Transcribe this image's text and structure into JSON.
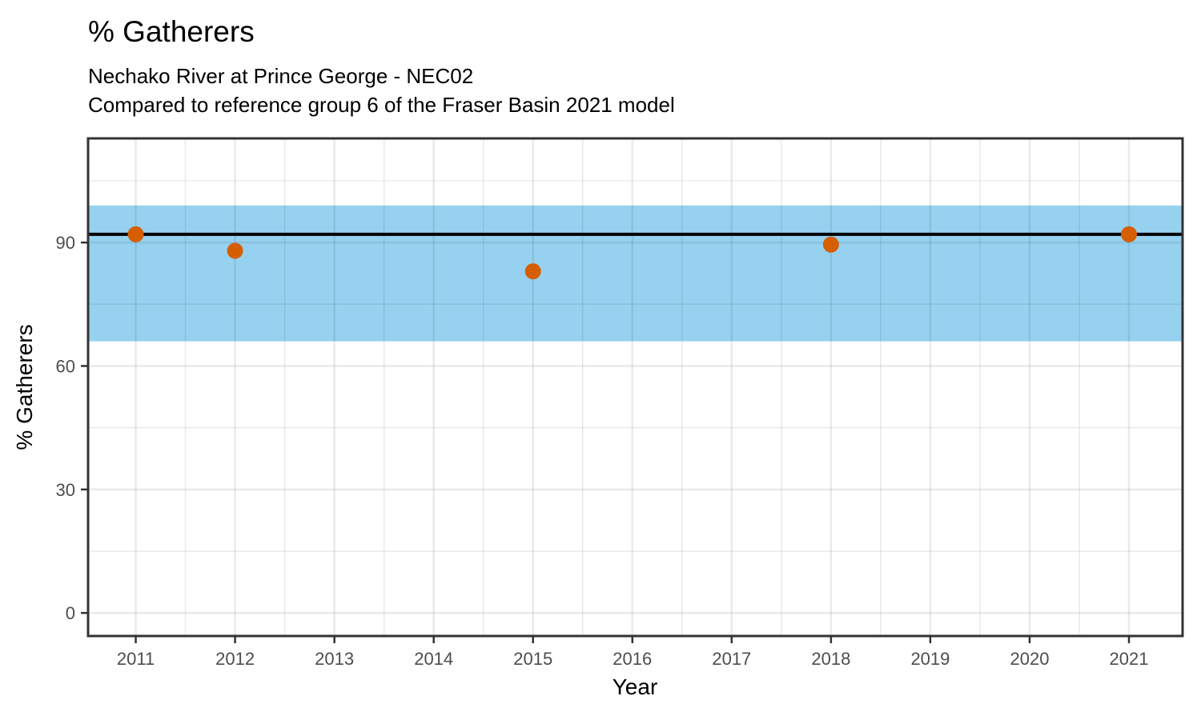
{
  "header": {
    "title": "% Gatherers",
    "subtitle_line1": "Nechako River at Prince George - NEC02",
    "subtitle_line2": "Compared to reference group 6 of the Fraser Basin 2021 model"
  },
  "chart_data": {
    "type": "scatter",
    "title": "% Gatherers",
    "subtitle": "Nechako River at Prince George - NEC02 / Compared to reference group 6 of the Fraser Basin 2021 model",
    "xlabel": "Year",
    "ylabel": "% Gatherers",
    "x_domain": [
      2010.52,
      2021.54
    ],
    "y_domain": [
      -5.6,
      115.3
    ],
    "x_ticks": [
      2011,
      2012,
      2013,
      2014,
      2015,
      2016,
      2017,
      2018,
      2019,
      2020,
      2021
    ],
    "x_minor_ticks": [
      2011.5,
      2012.5,
      2013.5,
      2014.5,
      2015.5,
      2016.5,
      2017.5,
      2018.5,
      2019.5,
      2020.5
    ],
    "y_ticks": [
      0,
      30,
      60,
      90
    ],
    "y_minor_ticks": [
      15,
      45,
      75,
      105
    ],
    "grid": "major+minor",
    "legend": false,
    "reference_band": {
      "lower": 66,
      "upper": 99,
      "fill": "#96D2F0"
    },
    "reference_line": {
      "value": 92,
      "color": "#000000",
      "width": 4
    },
    "series": [
      {
        "name": "% Gatherers",
        "color": "#D55E00",
        "x": [
          2011,
          2012,
          2015,
          2018,
          2021
        ],
        "y": [
          92,
          88,
          83,
          89.5,
          92
        ]
      }
    ]
  },
  "style": {
    "point_color": "#D55E00",
    "point_radius": 10,
    "band_color": "#96D2F0",
    "reference_line_color": "#000000",
    "grid_color": "rgba(0,0,0,0.08)",
    "axis_color": "#333333",
    "tick_label_color": "#4D4D4D",
    "tick_label_size": 22
  }
}
